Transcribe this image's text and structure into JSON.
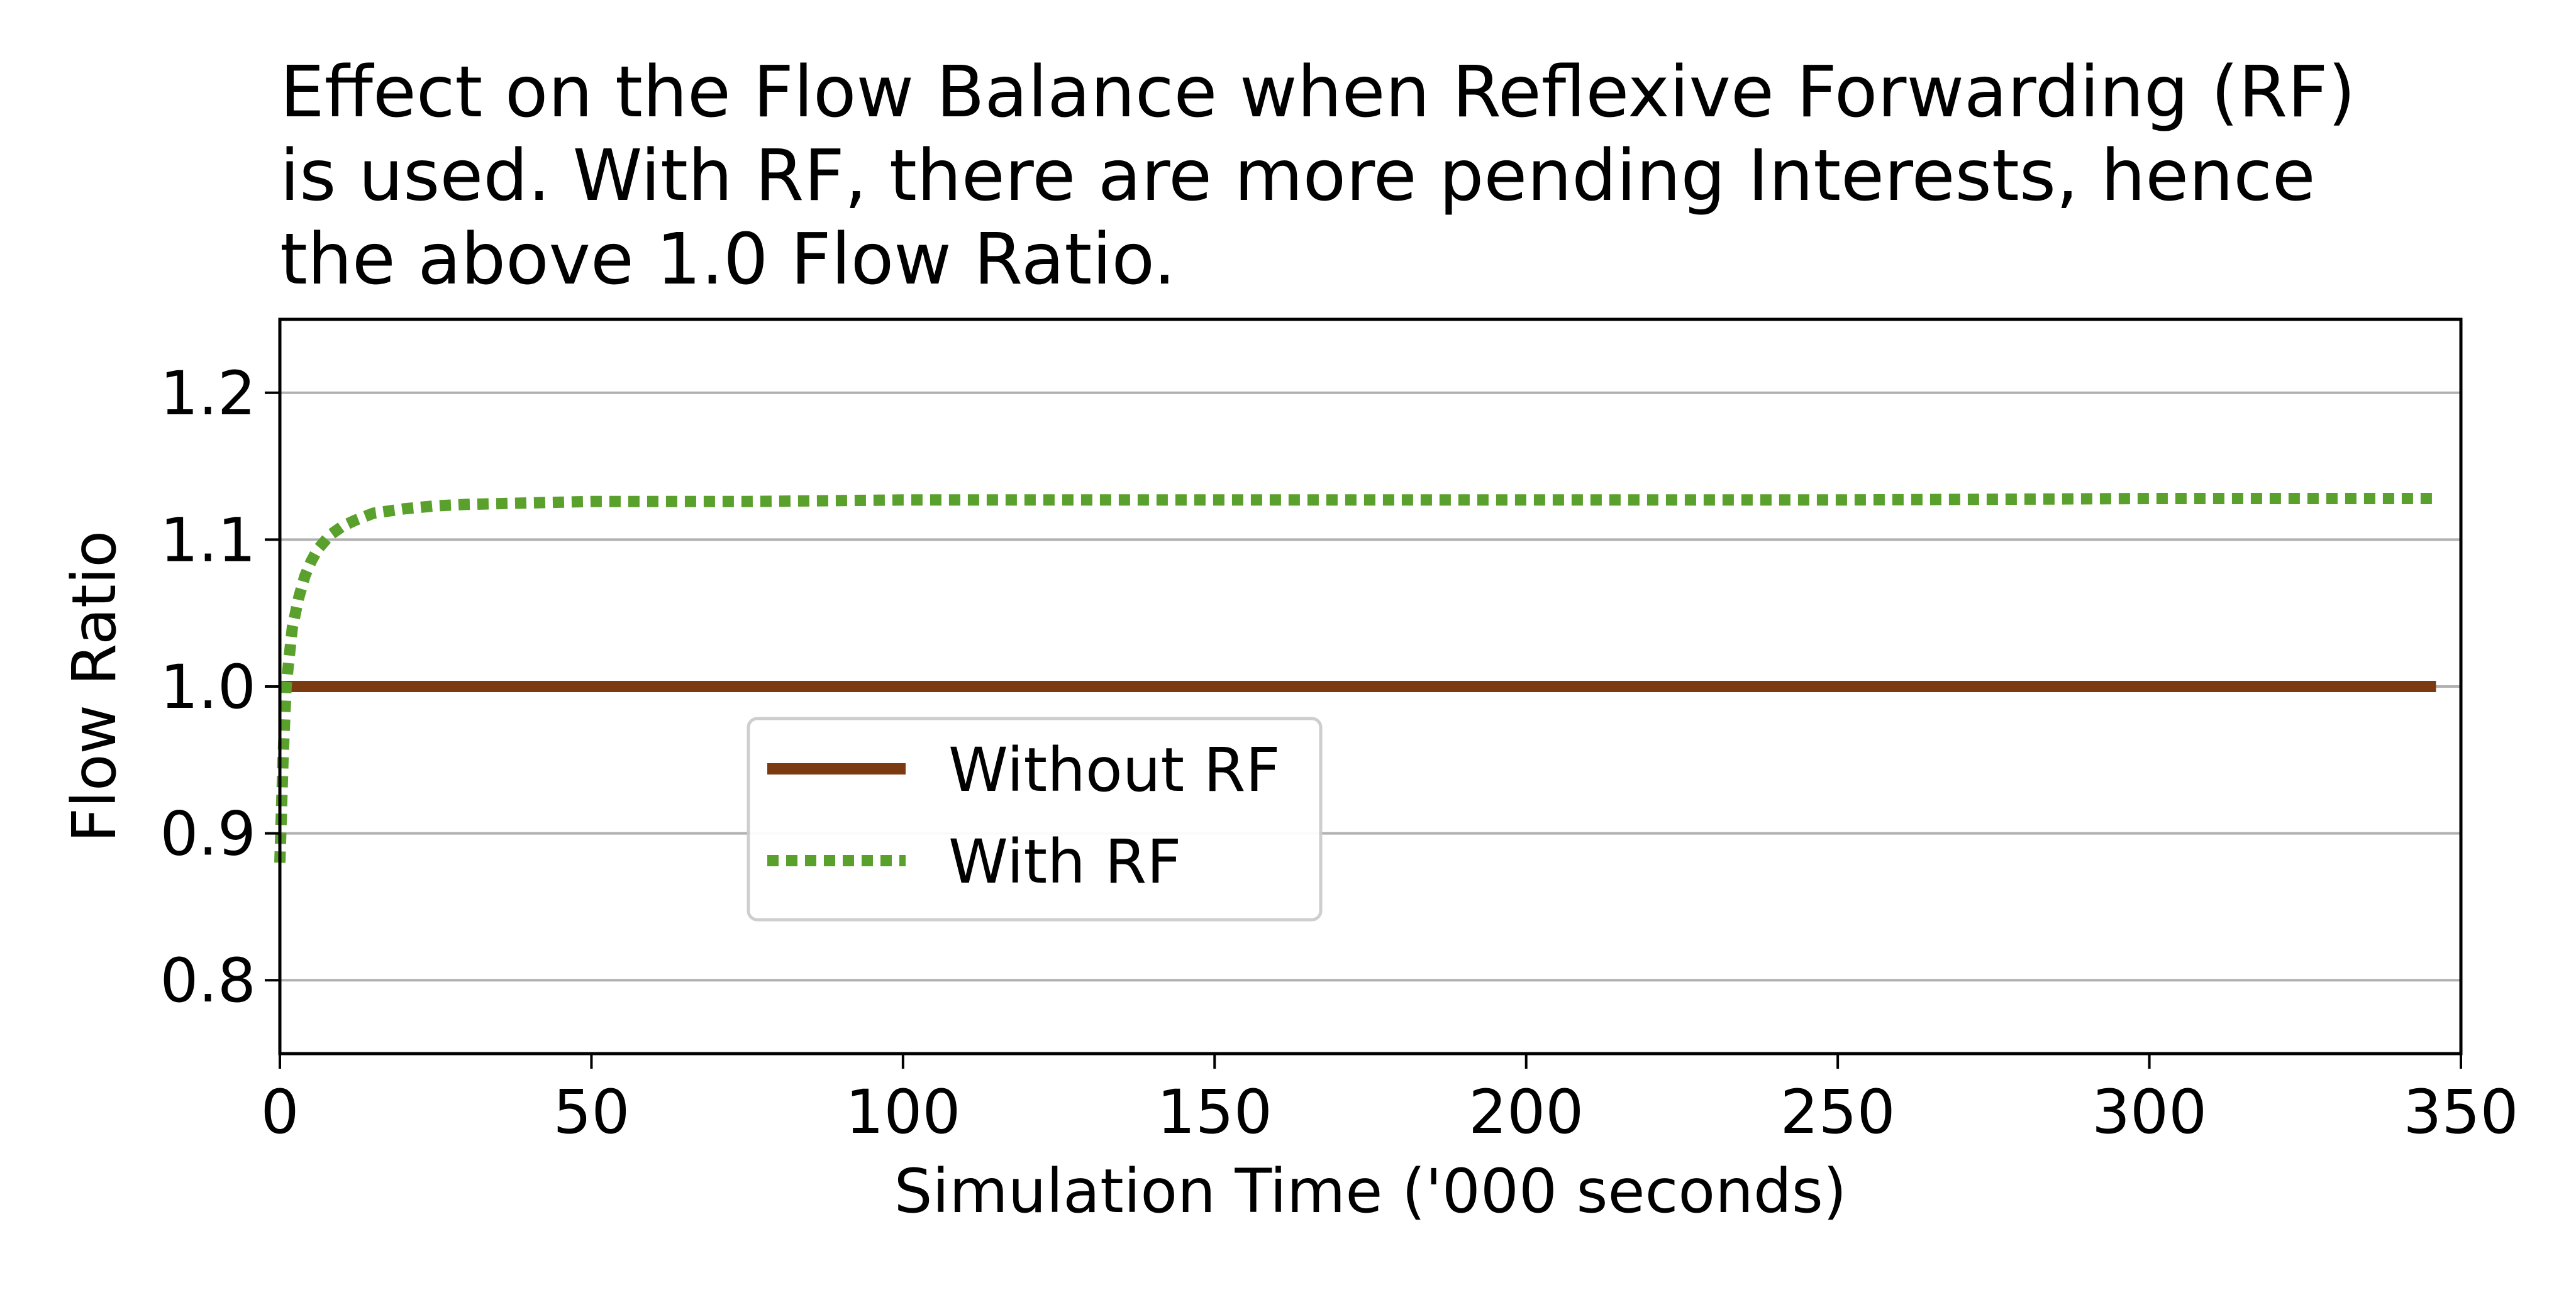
{
  "chart_data": {
    "type": "line",
    "title_lines": [
      "Effect on the Flow Balance when Reflexive Forwarding (RF)",
      "is used. With RF, there are more pending Interests, hence",
      "the above 1.0 Flow Ratio."
    ],
    "xlabel": "Simulation Time ('000 seconds)",
    "ylabel": "Flow Ratio",
    "xlim": [
      0,
      350
    ],
    "ylim": [
      0.75,
      1.25
    ],
    "xticks": [
      0,
      50,
      100,
      150,
      200,
      250,
      300,
      350
    ],
    "xtick_labels": [
      "0",
      "50",
      "100",
      "150",
      "200",
      "250",
      "300",
      "350"
    ],
    "yticks": [
      0.8,
      0.9,
      1.0,
      1.1,
      1.2
    ],
    "ytick_labels": [
      "0.8",
      "0.9",
      "1.0",
      "1.1",
      "1.2"
    ],
    "grid": "horizontal",
    "legend_position": "center-left",
    "series": [
      {
        "name": "Without RF",
        "color": "#7b3a10",
        "style": "solid",
        "x": [
          0,
          346
        ],
        "y": [
          1.0,
          1.0
        ]
      },
      {
        "name": "With RF",
        "color": "#5aa02c",
        "style": "dotted",
        "x": [
          0,
          0.5,
          1,
          2,
          3,
          4,
          5,
          6,
          8,
          10,
          12,
          15,
          20,
          25,
          30,
          40,
          50,
          75,
          100,
          150,
          200,
          250,
          300,
          346
        ],
        "y": [
          0.88,
          0.95,
          1.0,
          1.04,
          1.06,
          1.075,
          1.085,
          1.093,
          1.103,
          1.109,
          1.113,
          1.118,
          1.121,
          1.123,
          1.124,
          1.125,
          1.126,
          1.126,
          1.127,
          1.127,
          1.127,
          1.127,
          1.128,
          1.128
        ]
      }
    ]
  }
}
